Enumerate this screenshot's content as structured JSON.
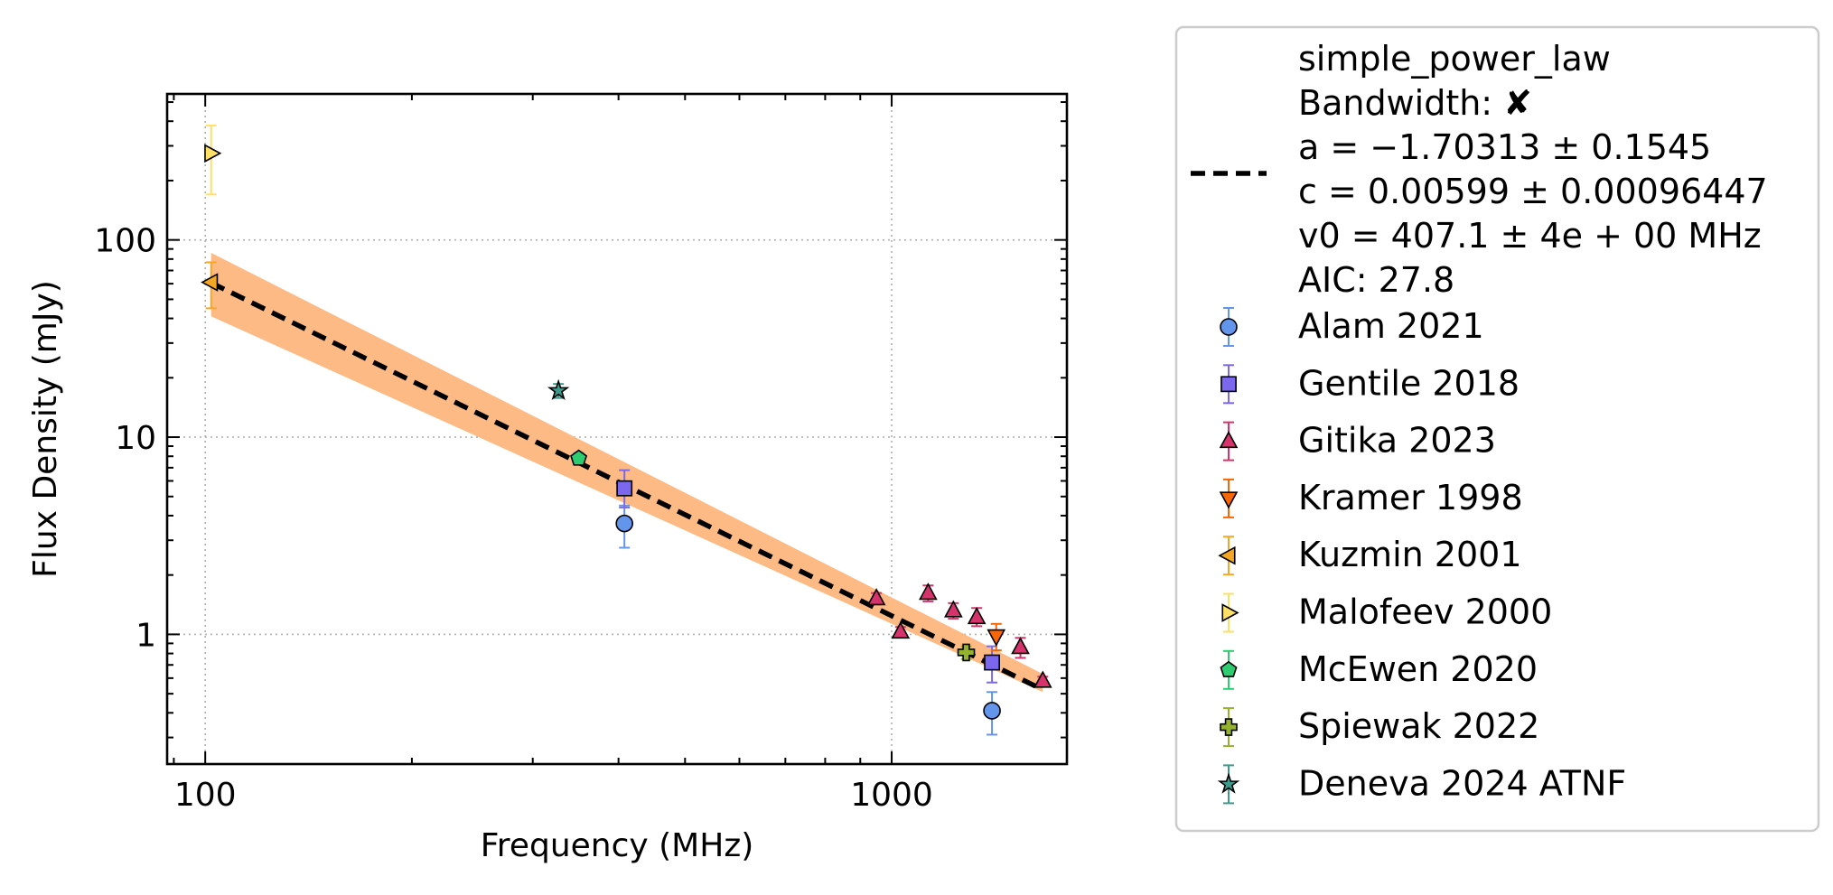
{
  "chart_data": {
    "type": "scatter",
    "xlabel": "Frequency (MHz)",
    "ylabel": "Flux Density (mJy)",
    "xscale": "log",
    "yscale": "log",
    "xlim": [
      88,
      1800
    ],
    "ylim": [
      0.22,
      550
    ],
    "xticks": [
      100,
      1000
    ],
    "xtick_labels": [
      "100",
      "1000"
    ],
    "yticks": [
      1,
      10,
      100
    ],
    "ytick_labels": [
      "1",
      "10",
      "100"
    ],
    "grid": true,
    "legend_position": "outside-right",
    "fit": {
      "legend_lines": [
        "simple_power_law",
        "Bandwidth: ✘",
        "a = −1.70313 ± 0.1545",
        "c = 0.00599 ± 0.00096447",
        "v0 = 407.1 ± 4e + 00 MHz",
        "AIC: 27.8"
      ],
      "line_color": "#000000",
      "band_color": "#fdba84",
      "a": -1.70313,
      "v0": 407.1,
      "norm_at_v0": 5.74,
      "x_range": [
        102,
        1660
      ],
      "band_at_xmin": [
        41,
        86
      ],
      "band_at_xmax": [
        0.51,
        0.63
      ]
    },
    "series": [
      {
        "name": "Alam 2021",
        "marker": "circle",
        "color": "#6495ed",
        "ecolor": "#6495ed",
        "points": [
          {
            "x": 408,
            "y": 3.65,
            "lo": 2.75,
            "hi": 4.5
          },
          {
            "x": 1400,
            "y": 0.41,
            "lo": 0.31,
            "hi": 0.51
          }
        ]
      },
      {
        "name": "Gentile 2018",
        "marker": "square",
        "color": "#7b68ee",
        "ecolor": "#7b68ee",
        "points": [
          {
            "x": 408,
            "y": 5.5,
            "lo": 4.4,
            "hi": 6.8
          },
          {
            "x": 1400,
            "y": 0.72,
            "lo": 0.57,
            "hi": 0.87
          }
        ]
      },
      {
        "name": "Gitika 2023",
        "marker": "triangle-up",
        "color": "#d6336c",
        "ecolor": "#d6336c",
        "points": [
          {
            "x": 950,
            "y": 1.52,
            "lo": 1.42,
            "hi": 1.62
          },
          {
            "x": 1030,
            "y": 1.03,
            "lo": 0.98,
            "hi": 1.09
          },
          {
            "x": 1130,
            "y": 1.62,
            "lo": 1.47,
            "hi": 1.77
          },
          {
            "x": 1230,
            "y": 1.32,
            "lo": 1.2,
            "hi": 1.44
          },
          {
            "x": 1330,
            "y": 1.22,
            "lo": 1.1,
            "hi": 1.36
          },
          {
            "x": 1540,
            "y": 0.86,
            "lo": 0.76,
            "hi": 0.96
          },
          {
            "x": 1660,
            "y": 0.58,
            "lo": 0.55,
            "hi": 0.61
          }
        ]
      },
      {
        "name": "Kramer 1998",
        "marker": "triangle-down",
        "color": "#f76707",
        "ecolor": "#f76707",
        "points": [
          {
            "x": 1420,
            "y": 0.98,
            "lo": 0.83,
            "hi": 1.13
          }
        ]
      },
      {
        "name": "Kuzmin 2001",
        "marker": "triangle-left",
        "color": "#f5a623",
        "ecolor": "#f5a623",
        "points": [
          {
            "x": 102,
            "y": 61,
            "lo": 45,
            "hi": 77
          }
        ]
      },
      {
        "name": "Malofeev 2000",
        "marker": "triangle-right",
        "color": "#ffe066",
        "ecolor": "#ffe066",
        "points": [
          {
            "x": 102,
            "y": 275,
            "lo": 170,
            "hi": 380
          }
        ]
      },
      {
        "name": "McEwen 2020",
        "marker": "pentagon",
        "color": "#2ecc71",
        "ecolor": "#2ecc71",
        "points": [
          {
            "x": 350,
            "y": 7.8,
            "lo": 7.3,
            "hi": 8.3
          }
        ]
      },
      {
        "name": "Spiewak 2022",
        "marker": "plus",
        "color": "#94b130",
        "ecolor": "#94b130",
        "points": [
          {
            "x": 1284,
            "y": 0.81,
            "lo": 0.75,
            "hi": 0.87
          }
        ]
      },
      {
        "name": "Deneva 2024 ATNF",
        "marker": "star",
        "color": "#3c9a8c",
        "ecolor": "#3c9a8c",
        "points": [
          {
            "x": 327,
            "y": 17.2,
            "lo": 15.8,
            "hi": 18.6
          }
        ]
      }
    ]
  }
}
